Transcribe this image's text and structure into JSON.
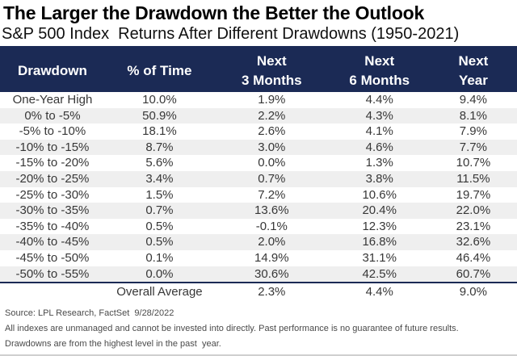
{
  "chart_data": {
    "type": "table",
    "title": "The Larger the Drawdown the Better the Outlook",
    "subtitle": "S&P 500 Index  Returns After Different Drawdowns (1950-2021)",
    "columns": [
      "Drawdown",
      "% of Time",
      "Next\n3 Months",
      "Next\n6 Months",
      "Next\nYear"
    ],
    "rows": [
      [
        "One-Year High",
        "10.0%",
        "1.9%",
        "4.4%",
        "9.4%"
      ],
      [
        "0% to -5%",
        "50.9%",
        "2.2%",
        "4.3%",
        "8.1%"
      ],
      [
        "-5% to -10%",
        "18.1%",
        "2.6%",
        "4.1%",
        "7.9%"
      ],
      [
        "-10% to -15%",
        "8.7%",
        "3.0%",
        "4.6%",
        "7.7%"
      ],
      [
        "-15% to -20%",
        "5.6%",
        "0.0%",
        "1.3%",
        "10.7%"
      ],
      [
        "-20% to -25%",
        "3.4%",
        "0.7%",
        "3.8%",
        "11.5%"
      ],
      [
        "-25% to -30%",
        "1.5%",
        "7.2%",
        "10.6%",
        "19.7%"
      ],
      [
        "-30% to -35%",
        "0.7%",
        "13.6%",
        "20.4%",
        "22.0%"
      ],
      [
        "-35% to -40%",
        "0.5%",
        "-0.1%",
        "12.3%",
        "23.1%"
      ],
      [
        "-40% to -45%",
        "0.5%",
        "2.0%",
        "16.8%",
        "32.6%"
      ],
      [
        "-45% to -50%",
        "0.1%",
        "14.9%",
        "31.1%",
        "46.4%"
      ],
      [
        "-50% to -55%",
        "0.0%",
        "30.6%",
        "42.5%",
        "60.7%"
      ]
    ],
    "overall": {
      "label": "Overall Average",
      "next_3_months": "2.3%",
      "next_6_months": "4.4%",
      "next_year": "9.0%"
    },
    "layout": {
      "stripe_rows": "even data rows shaded",
      "header_position": "top"
    }
  },
  "colors": {
    "header_bg": "#1b2a55",
    "header_text": "#ffffff",
    "stripe_bg": "#efefef",
    "accent_rule": "#1b2a55"
  },
  "footer": {
    "source": "Source: LPL Research, FactSet  9/28/2022",
    "disclaimer": "All indexes are unmanaged and cannot be invested into directly. Past performance is no guarantee of future results.",
    "note": "Drawdowns are from the highest level in the past  year."
  }
}
